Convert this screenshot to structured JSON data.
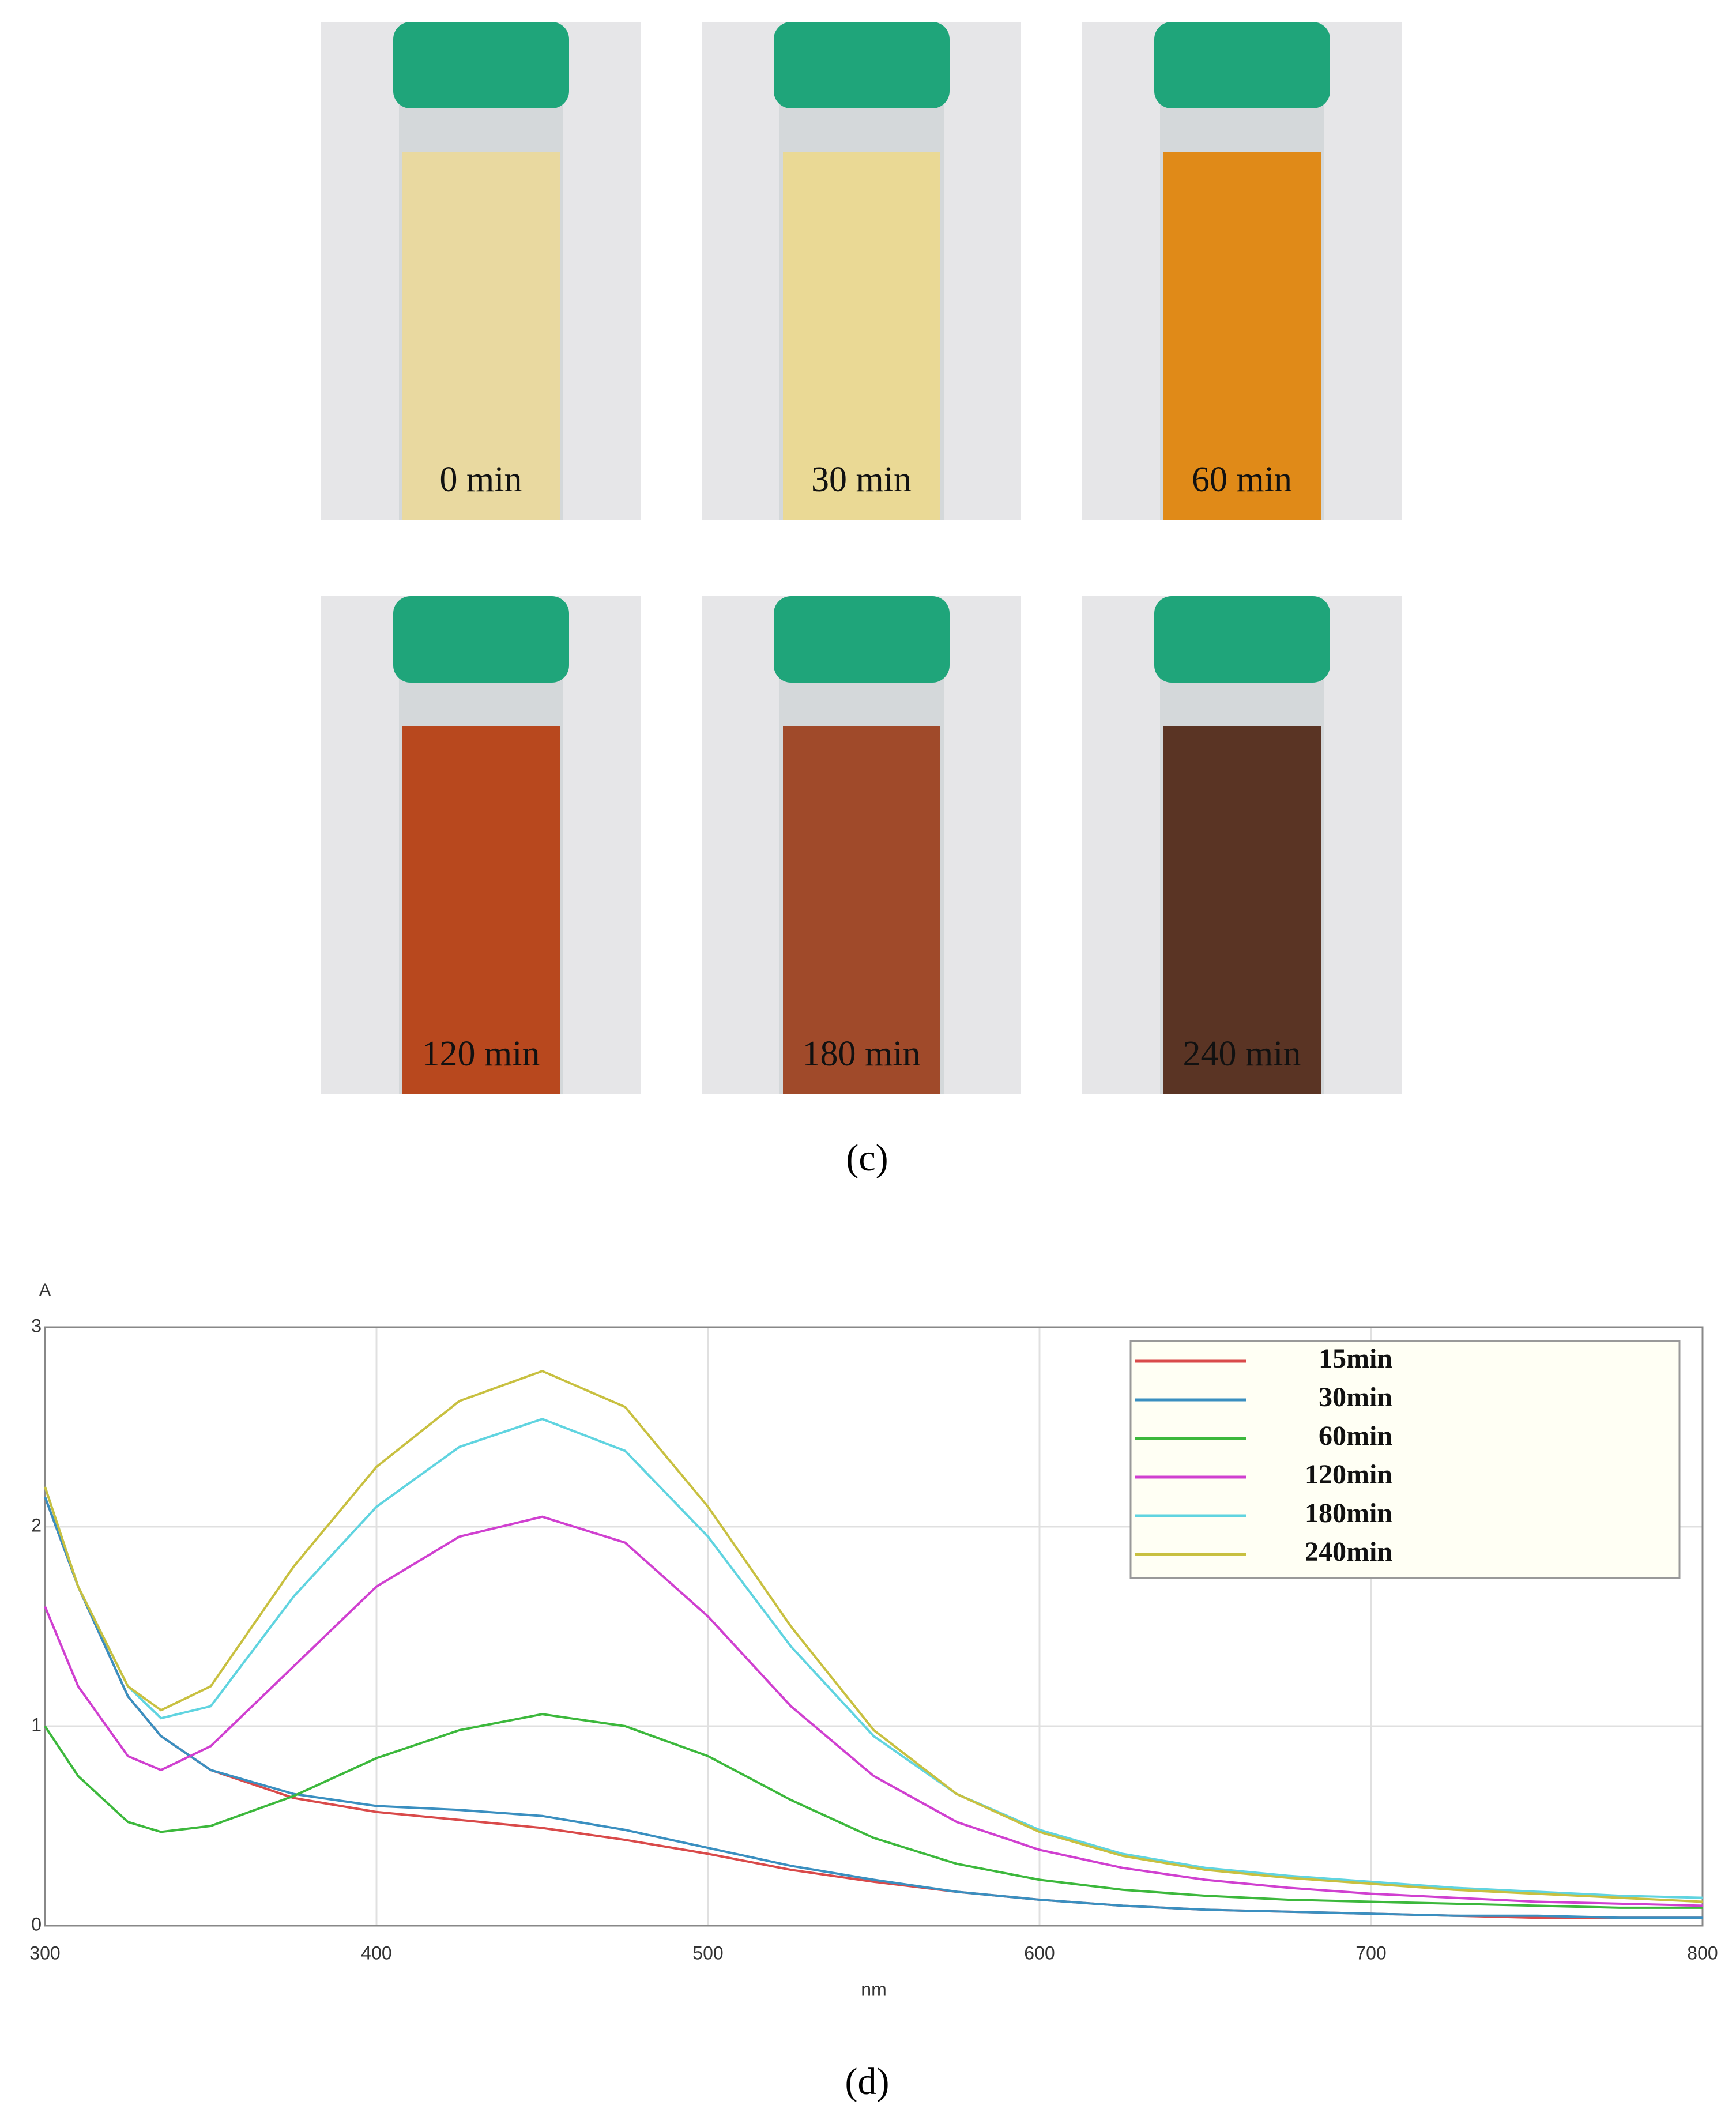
{
  "photos": {
    "labels": [
      "0 min",
      "30 min",
      "60 min",
      "120 min",
      "180 min",
      "240 min"
    ],
    "caption": "(c)"
  },
  "chart_data": {
    "type": "line",
    "caption": "(d)",
    "y_label": "A",
    "x_label": "nm",
    "x": [
      300,
      310,
      325,
      335,
      350,
      375,
      400,
      425,
      450,
      475,
      500,
      525,
      550,
      575,
      600,
      625,
      650,
      675,
      700,
      725,
      750,
      775,
      800
    ],
    "xlim": [
      300,
      800
    ],
    "xticks": [
      300,
      400,
      500,
      600,
      700,
      800
    ],
    "ylim": [
      0,
      3
    ],
    "yticks": [
      0,
      1,
      2,
      3
    ],
    "grid": true,
    "legend": "upper right",
    "series": [
      {
        "name": "15min",
        "color": "#d94a4a",
        "values": [
          2.15,
          1.7,
          1.15,
          0.95,
          0.78,
          0.64,
          0.57,
          0.53,
          0.49,
          0.43,
          0.36,
          0.28,
          0.22,
          0.17,
          0.13,
          0.1,
          0.08,
          0.07,
          0.06,
          0.05,
          0.04,
          0.04,
          0.04
        ]
      },
      {
        "name": "30min",
        "color": "#3a8fc0",
        "values": [
          2.15,
          1.7,
          1.15,
          0.95,
          0.78,
          0.66,
          0.6,
          0.58,
          0.55,
          0.48,
          0.39,
          0.3,
          0.23,
          0.17,
          0.13,
          0.1,
          0.08,
          0.07,
          0.06,
          0.05,
          0.05,
          0.04,
          0.04
        ]
      },
      {
        "name": "60min",
        "color": "#3cb83c",
        "values": [
          1.0,
          0.75,
          0.52,
          0.47,
          0.5,
          0.65,
          0.84,
          0.98,
          1.06,
          1.0,
          0.85,
          0.63,
          0.44,
          0.31,
          0.23,
          0.18,
          0.15,
          0.13,
          0.12,
          0.11,
          0.1,
          0.09,
          0.09
        ]
      },
      {
        "name": "120min",
        "color": "#d040d0",
        "values": [
          1.6,
          1.2,
          0.85,
          0.78,
          0.9,
          1.3,
          1.7,
          1.95,
          2.05,
          1.92,
          1.55,
          1.1,
          0.75,
          0.52,
          0.38,
          0.29,
          0.23,
          0.19,
          0.16,
          0.14,
          0.12,
          0.11,
          0.1
        ]
      },
      {
        "name": "180min",
        "color": "#60d4e0",
        "values": [
          2.2,
          1.7,
          1.2,
          1.04,
          1.1,
          1.65,
          2.1,
          2.4,
          2.54,
          2.38,
          1.95,
          1.4,
          0.95,
          0.66,
          0.48,
          0.36,
          0.29,
          0.25,
          0.22,
          0.19,
          0.17,
          0.15,
          0.14
        ]
      },
      {
        "name": "240min",
        "color": "#c8c040",
        "values": [
          2.2,
          1.7,
          1.2,
          1.08,
          1.2,
          1.8,
          2.3,
          2.63,
          2.78,
          2.6,
          2.1,
          1.5,
          0.98,
          0.66,
          0.47,
          0.35,
          0.28,
          0.24,
          0.21,
          0.18,
          0.16,
          0.14,
          0.12
        ]
      }
    ]
  }
}
